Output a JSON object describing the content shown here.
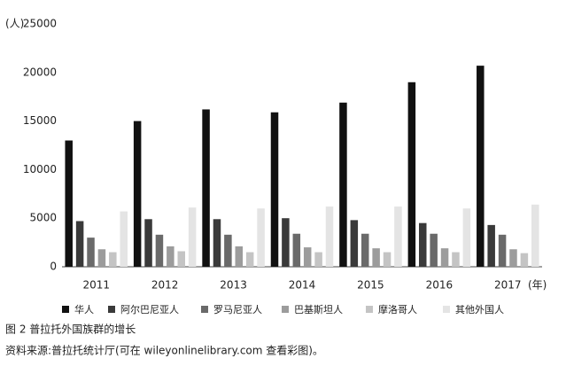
{
  "chart_data": {
    "type": "bar",
    "y_label": "(人)",
    "x_label": "(年)",
    "caption": "图 2  普拉托外国族群的增长",
    "source": "资料来源:普拉托统计厅(可在 wileyonlinelibrary.com 查看彩图)。",
    "categories": [
      "2011",
      "2012",
      "2013",
      "2014",
      "2015",
      "2016",
      "2017"
    ],
    "series": [
      {
        "name": "华人",
        "color": "#111111",
        "values": [
          13000,
          15000,
          16200,
          15900,
          16900,
          19000,
          20700
        ]
      },
      {
        "name": "阿尔巴尼亚人",
        "color": "#3a3a3a",
        "values": [
          4700,
          4900,
          4900,
          5000,
          4800,
          4500,
          4300
        ]
      },
      {
        "name": "罗马尼亚人",
        "color": "#6a6a6a",
        "values": [
          3000,
          3300,
          3300,
          3400,
          3400,
          3400,
          3300
        ]
      },
      {
        "name": "巴基斯坦人",
        "color": "#9c9c9c",
        "values": [
          1800,
          2100,
          2100,
          2000,
          1900,
          1900,
          1800
        ]
      },
      {
        "name": "摩洛哥人",
        "color": "#c4c4c4",
        "values": [
          1500,
          1600,
          1500,
          1500,
          1500,
          1500,
          1400
        ]
      },
      {
        "name": "其他外国人",
        "color": "#e4e4e4",
        "values": [
          5700,
          6100,
          6000,
          6200,
          6200,
          6000,
          6400
        ]
      }
    ],
    "ylim": [
      0,
      25000
    ],
    "yticks": [
      0,
      5000,
      10000,
      15000,
      20000,
      25000
    ],
    "grid": false
  }
}
